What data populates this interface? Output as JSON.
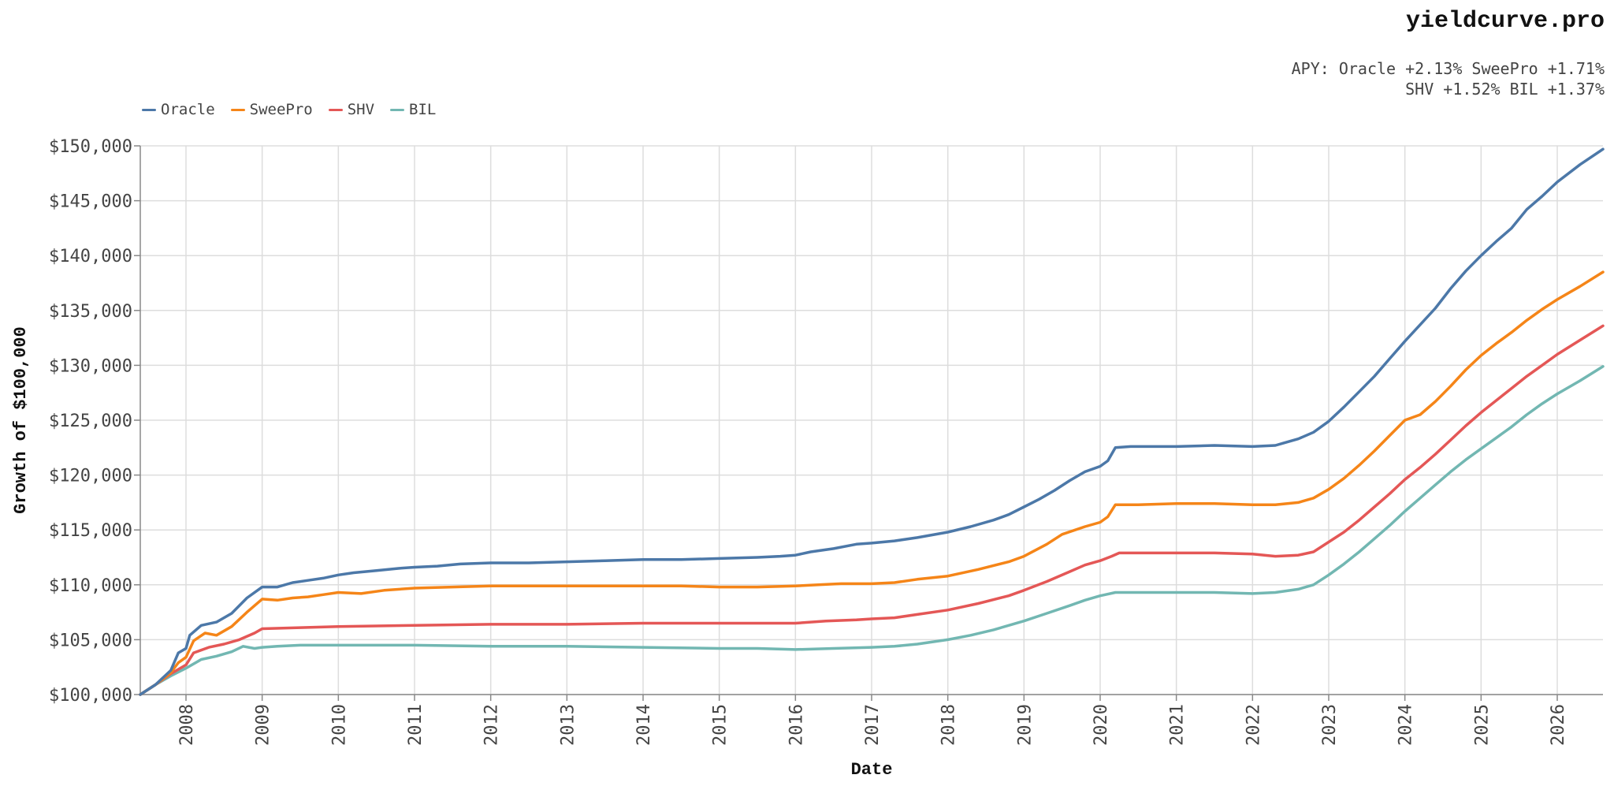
{
  "brand": "yieldcurve.pro",
  "subtitle": {
    "line1": "APY: Oracle +2.13% SweePro +1.71%",
    "line2": "SHV +1.52% BIL +1.37%"
  },
  "chart_data": {
    "type": "line",
    "title": "",
    "xlabel": "Date",
    "ylabel": "Growth of $100,000",
    "xlim": [
      2007.4,
      2026.6
    ],
    "ylim": [
      100000,
      150000
    ],
    "y_ticks": [
      100000,
      105000,
      110000,
      115000,
      120000,
      125000,
      130000,
      135000,
      140000,
      145000,
      150000
    ],
    "y_tick_labels": [
      "$100,000",
      "$105,000",
      "$110,000",
      "$115,000",
      "$120,000",
      "$125,000",
      "$130,000",
      "$135,000",
      "$140,000",
      "$145,000",
      "$150,000"
    ],
    "x_ticks": [
      2008,
      2009,
      2010,
      2011,
      2012,
      2013,
      2014,
      2015,
      2016,
      2017,
      2018,
      2019,
      2020,
      2021,
      2022,
      2023,
      2024,
      2025,
      2026
    ],
    "x_tick_labels": [
      "2008",
      "2009",
      "2010",
      "2011",
      "2012",
      "2013",
      "2014",
      "2015",
      "2016",
      "2017",
      "2018",
      "2019",
      "2020",
      "2021",
      "2022",
      "2023",
      "2024",
      "2025",
      "2026"
    ],
    "grid": true,
    "legend_position": "top-left",
    "series": [
      {
        "name": "Oracle",
        "color": "#4c78a8",
        "points": [
          [
            2007.4,
            100000
          ],
          [
            2007.6,
            100900
          ],
          [
            2007.8,
            102200
          ],
          [
            2007.9,
            103800
          ],
          [
            2008.0,
            104200
          ],
          [
            2008.05,
            105400
          ],
          [
            2008.2,
            106300
          ],
          [
            2008.4,
            106600
          ],
          [
            2008.6,
            107400
          ],
          [
            2008.8,
            108800
          ],
          [
            2009.0,
            109800
          ],
          [
            2009.2,
            109800
          ],
          [
            2009.4,
            110200
          ],
          [
            2009.6,
            110400
          ],
          [
            2009.8,
            110600
          ],
          [
            2010.0,
            110900
          ],
          [
            2010.2,
            111100
          ],
          [
            2010.5,
            111300
          ],
          [
            2010.8,
            111500
          ],
          [
            2011.0,
            111600
          ],
          [
            2011.3,
            111700
          ],
          [
            2011.6,
            111900
          ],
          [
            2012.0,
            112000
          ],
          [
            2012.5,
            112000
          ],
          [
            2013.0,
            112100
          ],
          [
            2013.5,
            112200
          ],
          [
            2014.0,
            112300
          ],
          [
            2014.5,
            112300
          ],
          [
            2015.0,
            112400
          ],
          [
            2015.5,
            112500
          ],
          [
            2015.8,
            112600
          ],
          [
            2016.0,
            112700
          ],
          [
            2016.2,
            113000
          ],
          [
            2016.5,
            113300
          ],
          [
            2016.8,
            113700
          ],
          [
            2017.0,
            113800
          ],
          [
            2017.3,
            114000
          ],
          [
            2017.6,
            114300
          ],
          [
            2018.0,
            114800
          ],
          [
            2018.3,
            115300
          ],
          [
            2018.6,
            115900
          ],
          [
            2018.8,
            116400
          ],
          [
            2019.0,
            117100
          ],
          [
            2019.2,
            117800
          ],
          [
            2019.4,
            118600
          ],
          [
            2019.6,
            119500
          ],
          [
            2019.8,
            120300
          ],
          [
            2020.0,
            120800
          ],
          [
            2020.1,
            121300
          ],
          [
            2020.2,
            122500
          ],
          [
            2020.4,
            122600
          ],
          [
            2021.0,
            122600
          ],
          [
            2021.5,
            122700
          ],
          [
            2022.0,
            122600
          ],
          [
            2022.3,
            122700
          ],
          [
            2022.4,
            122900
          ],
          [
            2022.6,
            123300
          ],
          [
            2022.8,
            123900
          ],
          [
            2023.0,
            124900
          ],
          [
            2023.2,
            126200
          ],
          [
            2023.4,
            127600
          ],
          [
            2023.6,
            129000
          ],
          [
            2023.8,
            130600
          ],
          [
            2024.0,
            132200
          ],
          [
            2024.2,
            133700
          ],
          [
            2024.4,
            135200
          ],
          [
            2024.6,
            137000
          ],
          [
            2024.8,
            138600
          ],
          [
            2025.0,
            140000
          ],
          [
            2025.2,
            141300
          ],
          [
            2025.4,
            142500
          ],
          [
            2025.6,
            144200
          ],
          [
            2025.8,
            145400
          ],
          [
            2026.0,
            146700
          ],
          [
            2026.3,
            148300
          ],
          [
            2026.6,
            149700
          ]
        ]
      },
      {
        "name": "SweePro",
        "color": "#f58518",
        "points": [
          [
            2007.4,
            100000
          ],
          [
            2007.6,
            100900
          ],
          [
            2007.8,
            102000
          ],
          [
            2007.9,
            102900
          ],
          [
            2008.0,
            103400
          ],
          [
            2008.1,
            104900
          ],
          [
            2008.25,
            105600
          ],
          [
            2008.4,
            105400
          ],
          [
            2008.6,
            106200
          ],
          [
            2008.8,
            107500
          ],
          [
            2009.0,
            108700
          ],
          [
            2009.2,
            108600
          ],
          [
            2009.4,
            108800
          ],
          [
            2009.6,
            108900
          ],
          [
            2009.8,
            109100
          ],
          [
            2010.0,
            109300
          ],
          [
            2010.3,
            109200
          ],
          [
            2010.6,
            109500
          ],
          [
            2011.0,
            109700
          ],
          [
            2011.5,
            109800
          ],
          [
            2012.0,
            109900
          ],
          [
            2012.5,
            109900
          ],
          [
            2013.0,
            109900
          ],
          [
            2013.5,
            109900
          ],
          [
            2014.0,
            109900
          ],
          [
            2014.5,
            109900
          ],
          [
            2015.0,
            109800
          ],
          [
            2015.5,
            109800
          ],
          [
            2016.0,
            109900
          ],
          [
            2016.3,
            110000
          ],
          [
            2016.6,
            110100
          ],
          [
            2017.0,
            110100
          ],
          [
            2017.3,
            110200
          ],
          [
            2017.6,
            110500
          ],
          [
            2018.0,
            110800
          ],
          [
            2018.4,
            111400
          ],
          [
            2018.8,
            112100
          ],
          [
            2019.0,
            112600
          ],
          [
            2019.3,
            113700
          ],
          [
            2019.5,
            114600
          ],
          [
            2019.8,
            115300
          ],
          [
            2020.0,
            115700
          ],
          [
            2020.1,
            116200
          ],
          [
            2020.2,
            117300
          ],
          [
            2020.5,
            117300
          ],
          [
            2021.0,
            117400
          ],
          [
            2021.5,
            117400
          ],
          [
            2022.0,
            117300
          ],
          [
            2022.3,
            117300
          ],
          [
            2022.6,
            117500
          ],
          [
            2022.8,
            117900
          ],
          [
            2023.0,
            118700
          ],
          [
            2023.2,
            119700
          ],
          [
            2023.4,
            120900
          ],
          [
            2023.6,
            122200
          ],
          [
            2023.8,
            123600
          ],
          [
            2024.0,
            125000
          ],
          [
            2024.2,
            125500
          ],
          [
            2024.4,
            126700
          ],
          [
            2024.6,
            128100
          ],
          [
            2024.8,
            129600
          ],
          [
            2025.0,
            130900
          ],
          [
            2025.2,
            132000
          ],
          [
            2025.4,
            133000
          ],
          [
            2025.6,
            134100
          ],
          [
            2025.8,
            135100
          ],
          [
            2026.0,
            136000
          ],
          [
            2026.3,
            137200
          ],
          [
            2026.6,
            138500
          ]
        ]
      },
      {
        "name": "SHV",
        "color": "#e45756",
        "points": [
          [
            2007.4,
            100000
          ],
          [
            2007.6,
            100900
          ],
          [
            2007.8,
            101900
          ],
          [
            2008.0,
            102700
          ],
          [
            2008.1,
            103800
          ],
          [
            2008.3,
            104300
          ],
          [
            2008.5,
            104600
          ],
          [
            2008.7,
            105000
          ],
          [
            2008.9,
            105600
          ],
          [
            2009.0,
            106000
          ],
          [
            2009.5,
            106100
          ],
          [
            2010.0,
            106200
          ],
          [
            2011.0,
            106300
          ],
          [
            2012.0,
            106400
          ],
          [
            2013.0,
            106400
          ],
          [
            2014.0,
            106500
          ],
          [
            2015.0,
            106500
          ],
          [
            2016.0,
            106500
          ],
          [
            2016.4,
            106700
          ],
          [
            2016.8,
            106800
          ],
          [
            2017.0,
            106900
          ],
          [
            2017.3,
            107000
          ],
          [
            2017.6,
            107300
          ],
          [
            2018.0,
            107700
          ],
          [
            2018.4,
            108300
          ],
          [
            2018.8,
            109000
          ],
          [
            2019.0,
            109500
          ],
          [
            2019.3,
            110300
          ],
          [
            2019.6,
            111200
          ],
          [
            2019.8,
            111800
          ],
          [
            2020.0,
            112200
          ],
          [
            2020.15,
            112600
          ],
          [
            2020.25,
            112900
          ],
          [
            2021.0,
            112900
          ],
          [
            2021.5,
            112900
          ],
          [
            2022.0,
            112800
          ],
          [
            2022.3,
            112600
          ],
          [
            2022.6,
            112700
          ],
          [
            2022.8,
            113000
          ],
          [
            2023.0,
            113900
          ],
          [
            2023.2,
            114800
          ],
          [
            2023.4,
            115900
          ],
          [
            2023.6,
            117100
          ],
          [
            2023.8,
            118300
          ],
          [
            2024.0,
            119600
          ],
          [
            2024.2,
            120700
          ],
          [
            2024.4,
            121900
          ],
          [
            2024.6,
            123200
          ],
          [
            2024.8,
            124500
          ],
          [
            2025.0,
            125700
          ],
          [
            2025.2,
            126800
          ],
          [
            2025.4,
            127900
          ],
          [
            2025.6,
            129000
          ],
          [
            2025.8,
            130000
          ],
          [
            2026.0,
            131000
          ],
          [
            2026.3,
            132300
          ],
          [
            2026.6,
            133600
          ]
        ]
      },
      {
        "name": "BIL",
        "color": "#72b7b2",
        "points": [
          [
            2007.4,
            100000
          ],
          [
            2007.6,
            100900
          ],
          [
            2007.8,
            101700
          ],
          [
            2008.0,
            102400
          ],
          [
            2008.2,
            103200
          ],
          [
            2008.4,
            103500
          ],
          [
            2008.6,
            103900
          ],
          [
            2008.75,
            104400
          ],
          [
            2008.9,
            104200
          ],
          [
            2009.0,
            104300
          ],
          [
            2009.2,
            104400
          ],
          [
            2009.5,
            104500
          ],
          [
            2010.0,
            104500
          ],
          [
            2011.0,
            104500
          ],
          [
            2012.0,
            104400
          ],
          [
            2013.0,
            104400
          ],
          [
            2014.0,
            104300
          ],
          [
            2015.0,
            104200
          ],
          [
            2015.5,
            104200
          ],
          [
            2016.0,
            104100
          ],
          [
            2016.5,
            104200
          ],
          [
            2017.0,
            104300
          ],
          [
            2017.3,
            104400
          ],
          [
            2017.6,
            104600
          ],
          [
            2018.0,
            105000
          ],
          [
            2018.3,
            105400
          ],
          [
            2018.6,
            105900
          ],
          [
            2019.0,
            106700
          ],
          [
            2019.3,
            107400
          ],
          [
            2019.6,
            108100
          ],
          [
            2019.8,
            108600
          ],
          [
            2020.0,
            109000
          ],
          [
            2020.2,
            109300
          ],
          [
            2020.5,
            109300
          ],
          [
            2021.0,
            109300
          ],
          [
            2021.5,
            109300
          ],
          [
            2022.0,
            109200
          ],
          [
            2022.3,
            109300
          ],
          [
            2022.6,
            109600
          ],
          [
            2022.8,
            110000
          ],
          [
            2023.0,
            110900
          ],
          [
            2023.2,
            111900
          ],
          [
            2023.4,
            113000
          ],
          [
            2023.6,
            114200
          ],
          [
            2023.8,
            115400
          ],
          [
            2024.0,
            116700
          ],
          [
            2024.2,
            117900
          ],
          [
            2024.4,
            119100
          ],
          [
            2024.6,
            120300
          ],
          [
            2024.8,
            121400
          ],
          [
            2025.0,
            122400
          ],
          [
            2025.2,
            123400
          ],
          [
            2025.4,
            124400
          ],
          [
            2025.6,
            125500
          ],
          [
            2025.8,
            126500
          ],
          [
            2026.0,
            127400
          ],
          [
            2026.3,
            128600
          ],
          [
            2026.6,
            129900
          ]
        ]
      }
    ]
  }
}
